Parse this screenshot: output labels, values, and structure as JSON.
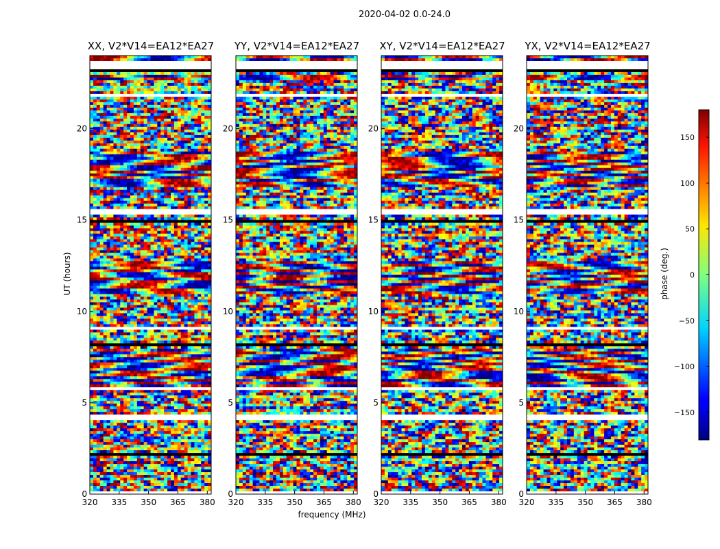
{
  "chart_data": {
    "type": "heatmap",
    "suptitle": "2020-04-02 0.0-24.0",
    "xlabel": "frequency (MHz)",
    "ylabel": "UT (hours)",
    "xlim": [
      320,
      382
    ],
    "ylim": [
      0,
      24
    ],
    "xticks": [
      320,
      335,
      350,
      365,
      380
    ],
    "yticks": [
      0,
      5,
      10,
      15,
      20
    ],
    "panels": [
      {
        "title": "XX, V2*V14=EA12*EA27"
      },
      {
        "title": "YY, V2*V14=EA12*EA27"
      },
      {
        "title": "XY, V2*V14=EA12*EA27"
      },
      {
        "title": "YX, V2*V14=EA12*EA27"
      }
    ],
    "colorbar": {
      "label": "phase (deg.)",
      "colormap": "jet",
      "range": [
        -180,
        180
      ],
      "ticks": [
        150,
        100,
        50,
        0,
        -50,
        -100,
        -150
      ],
      "tick_labels": [
        "150",
        "100",
        "50",
        "0",
        "−50",
        "−100",
        "−150"
      ]
    },
    "flagged_ut_ranges_hours": [
      [
        23.05,
        23.7
      ],
      [
        22.6,
        22.7
      ],
      [
        21.75,
        21.85
      ],
      [
        16.65,
        16.7
      ],
      [
        15.3,
        15.55
      ],
      [
        14.9,
        15.0
      ],
      [
        10.35,
        10.42
      ],
      [
        9.05,
        9.1
      ],
      [
        8.1,
        8.25
      ],
      [
        7.9,
        7.95
      ],
      [
        5.75,
        5.82
      ],
      [
        4.1,
        4.3
      ],
      [
        2.1,
        2.22
      ],
      [
        1.3,
        1.38
      ],
      [
        0.0,
        0.08
      ]
    ],
    "structured_bands_hours": [
      [
        16.8,
        18.8
      ],
      [
        5.9,
        8.0
      ],
      [
        22.7,
        23.0
      ],
      [
        23.7,
        24.0
      ],
      [
        11.0,
        12.8
      ]
    ]
  }
}
